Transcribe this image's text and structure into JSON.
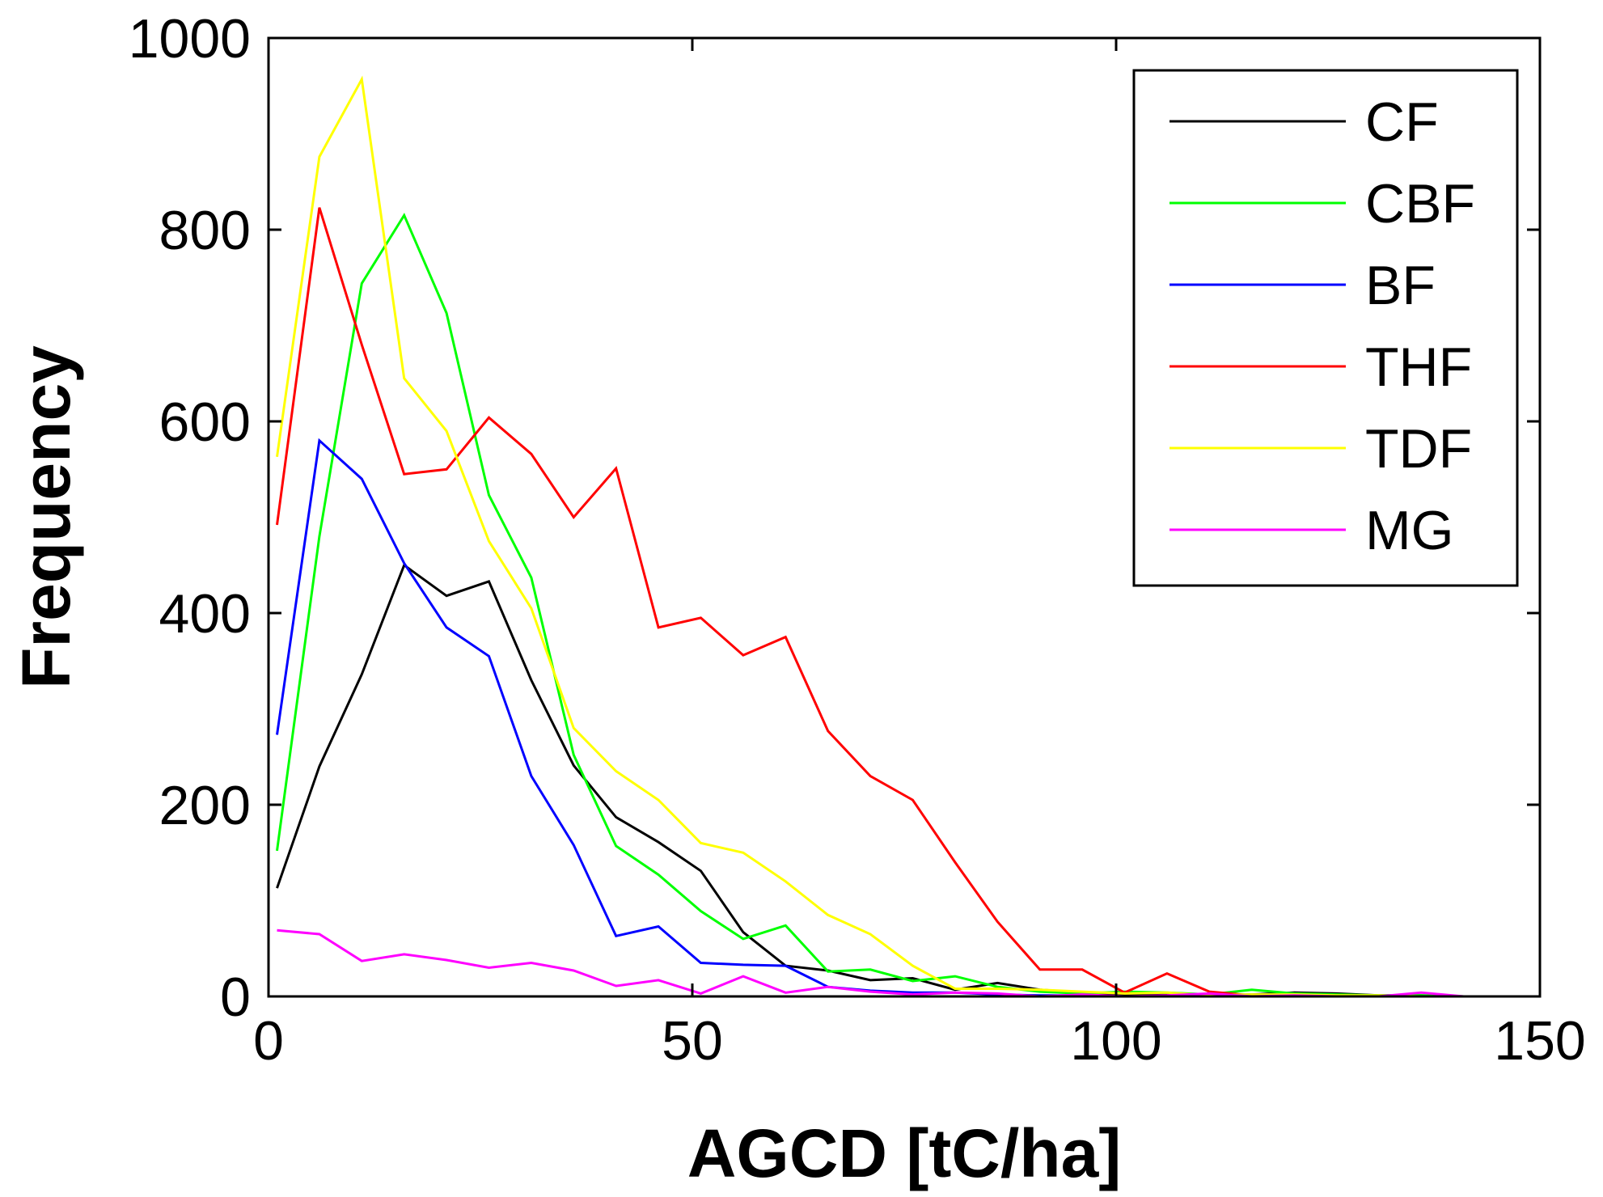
{
  "chart_data": {
    "type": "line",
    "title": "",
    "xlabel": "AGCD [tC/ha]",
    "ylabel": "Frequency",
    "xlim": [
      0,
      150
    ],
    "ylim": [
      0,
      1000
    ],
    "xticks": [
      0,
      50,
      100,
      150
    ],
    "yticks": [
      0,
      200,
      400,
      600,
      800,
      1000
    ],
    "xtick_labels": [
      "0",
      "50",
      "100",
      "150"
    ],
    "ytick_labels": [
      "0",
      "200",
      "400",
      "600",
      "800",
      "1000"
    ],
    "grid": false,
    "legend_position": "top-right",
    "x": [
      1,
      6,
      11,
      16,
      21,
      26,
      31,
      36,
      41,
      46,
      51,
      56,
      61,
      66,
      71,
      76,
      81,
      86,
      91,
      96,
      101,
      106,
      111,
      116,
      121,
      126,
      131,
      136,
      141,
      146,
      150
    ],
    "series": [
      {
        "name": "CF",
        "color": "#000000",
        "values": [
          113,
          240,
          336,
          450,
          418,
          433,
          330,
          241,
          187,
          161,
          131,
          67,
          32,
          27,
          17,
          19,
          7,
          14,
          7,
          4,
          2,
          2,
          1,
          2,
          4,
          3,
          1,
          1,
          0,
          0,
          0
        ]
      },
      {
        "name": "CBF",
        "color": "#00ff00",
        "values": [
          152,
          480,
          744,
          815,
          713,
          523,
          437,
          252,
          157,
          127,
          89,
          60,
          74,
          26,
          28,
          16,
          21,
          10,
          5,
          3,
          5,
          4,
          2,
          7,
          3,
          2,
          1,
          1,
          0,
          0,
          0
        ]
      },
      {
        "name": "BF",
        "color": "#0000ff",
        "values": [
          273,
          580,
          540,
          452,
          385,
          355,
          230,
          158,
          63,
          73,
          35,
          33,
          32,
          10,
          6,
          4,
          4,
          2,
          1,
          1,
          0,
          0,
          0,
          0,
          0,
          0,
          0,
          0,
          0,
          0,
          0
        ]
      },
      {
        "name": "THF",
        "color": "#ff0000",
        "values": [
          492,
          823,
          680,
          545,
          550,
          604,
          566,
          500,
          551,
          385,
          395,
          356,
          375,
          277,
          230,
          205,
          140,
          78,
          28,
          28,
          4,
          24,
          5,
          1,
          0,
          0,
          0,
          0,
          0,
          0,
          0
        ]
      },
      {
        "name": "TDF",
        "color": "#ffff00",
        "values": [
          563,
          876,
          957,
          645,
          590,
          475,
          405,
          280,
          235,
          205,
          160,
          150,
          120,
          85,
          65,
          32,
          8,
          8,
          7,
          5,
          3,
          4,
          1,
          2,
          2,
          1,
          1,
          0,
          0,
          0,
          0
        ]
      },
      {
        "name": "MG",
        "color": "#ff00ff",
        "values": [
          69,
          65,
          37,
          44,
          38,
          30,
          35,
          27,
          11,
          17,
          3,
          21,
          4,
          10,
          5,
          2,
          4,
          3,
          0,
          2,
          0,
          1,
          3,
          0,
          1,
          0,
          0,
          4,
          0,
          0,
          0
        ]
      }
    ]
  }
}
